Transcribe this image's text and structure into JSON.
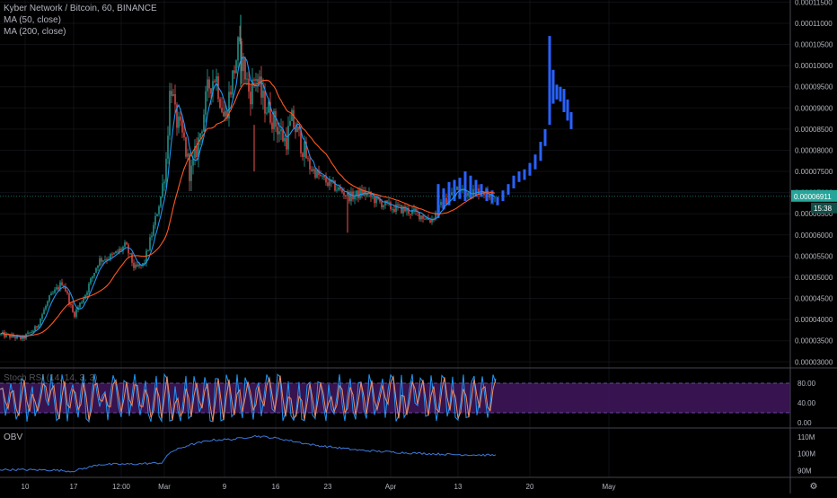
{
  "header": {
    "symbol_line": "Kyber Network / Bitcoin, 60, BINANCE",
    "ma50_label": "MA (50, close)",
    "ma200_label": "MA (200, close)"
  },
  "indicators": {
    "stoch_label": "Stoch RSI (14, 14, 3, 3)",
    "obv_label": "OBV"
  },
  "price_scale": {
    "ticks": [
      "0.00011500",
      "0.00011000",
      "0.00010500",
      "0.00010000",
      "0.00009500",
      "0.00009000",
      "0.00008500",
      "0.00008000",
      "0.00007500",
      "0.00007000",
      "0.00006500",
      "0.00006000",
      "0.00005500",
      "0.00005000",
      "0.00004500",
      "0.00004000",
      "0.00003500",
      "0.00003000"
    ],
    "last_price": "0.00006911",
    "countdown": "15:38",
    "last_price_color": "#26a69a"
  },
  "stoch_scale": {
    "ticks": [
      "80.00",
      "40.00",
      "0.00"
    ],
    "overbought": 80,
    "oversold": 20
  },
  "obv_scale": {
    "ticks": [
      "110M",
      "100M",
      "90M"
    ]
  },
  "time_axis": {
    "labels": [
      "10",
      "17",
      "12:00",
      "Mar",
      "9",
      "16",
      "23",
      "Apr",
      "13",
      "20",
      "May"
    ]
  },
  "colors": {
    "up": "#26a69a",
    "down": "#ef5350",
    "ma50": "#2196f3",
    "ma200": "#ff5722",
    "projection": "#2962ff",
    "stoch_k": "#2196f3",
    "stoch_d": "#ef8c62",
    "stoch_band": "#4a1a6b",
    "obv": "#3c78d8",
    "grid": "#2a2e39",
    "text": "#b2b5be"
  },
  "chart_data": {
    "type": "candlestick",
    "symbol": "Kyber Network / Bitcoin",
    "interval": "60",
    "exchange": "BINANCE",
    "ylim": [
      2.9e-05,
      0.0001155
    ],
    "x_labels": [
      "10",
      "17",
      "12:00",
      "Mar",
      "9",
      "16",
      "23",
      "Apr",
      "13",
      "20",
      "May"
    ],
    "price_path": [
      {
        "x": "10",
        "close": 3.65e-05
      },
      {
        "x": "17",
        "close": 4.1e-05
      },
      {
        "x": "12:00",
        "close": 5.65e-05
      },
      {
        "x": "Mar",
        "close": 9.6e-05
      },
      {
        "x": "9",
        "close": 0.0001
      },
      {
        "x": "16",
        "close": 8.1e-05
      },
      {
        "x": "23",
        "close": 7.2e-05
      },
      {
        "x": "Apr",
        "close": 6.55e-05
      },
      {
        "x": "13",
        "close": 6.9e-05
      },
      {
        "x": "20",
        "close": 8.8e-05
      },
      {
        "x": "May",
        "close": null
      }
    ],
    "extremes": {
      "peak_high": 0.000112,
      "projection_high": 0.000107
    },
    "last_price": 6.911e-05,
    "ma_series": [
      "MA (50, close)",
      "MA (200, close)"
    ],
    "stoch_rsi": {
      "bands": [
        20,
        80
      ],
      "range": [
        0,
        100
      ]
    },
    "obv": {
      "range_m": [
        88,
        112
      ]
    }
  }
}
